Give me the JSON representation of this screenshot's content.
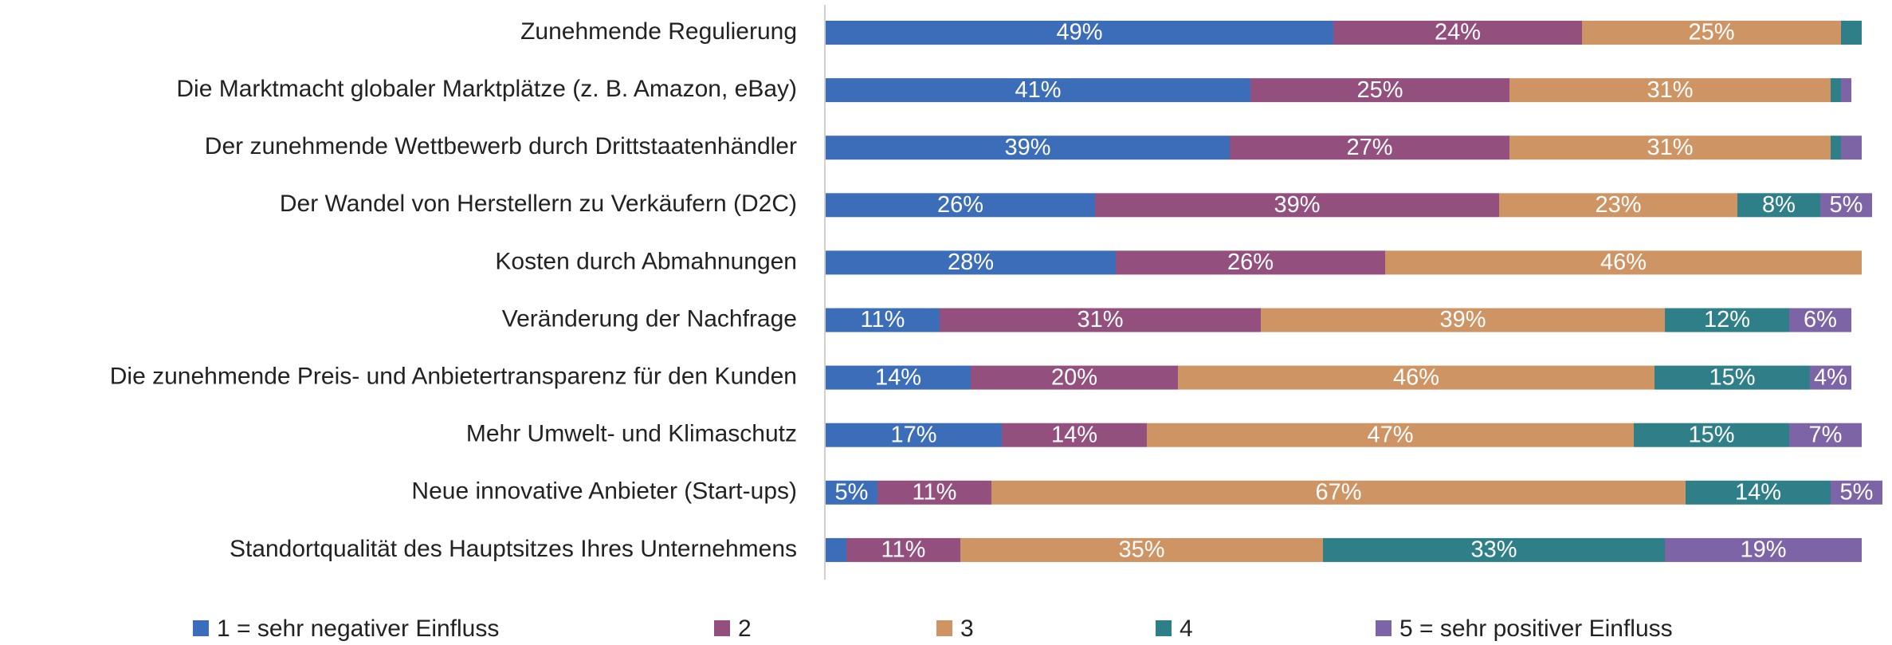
{
  "chart_data": {
    "type": "stacked-barh",
    "categories": [
      "Zunehmende Regulierung",
      "Die Marktmacht globaler Marktplätze (z. B. Amazon, eBay)",
      "Der zunehmende Wettbewerb durch Drittstaatenhändler",
      "Der Wandel von Herstellern zu Verkäufern (D2C)",
      "Kosten durch Abmahnungen",
      "Veränderung der Nachfrage",
      "Die zunehmende Preis- und Anbietertransparenz für den Kunden",
      "Mehr Umwelt- und Klimaschutz",
      "Neue innovative Anbieter (Start-ups)",
      "Standortqualität des Hauptsitzes Ihres Unternehmens"
    ],
    "series": [
      {
        "name": "1 = sehr negativer Einfluss",
        "color": "#3c6db8",
        "values": [
          49,
          41,
          39,
          26,
          28,
          11,
          14,
          17,
          5,
          2
        ],
        "value_labels": [
          "49%",
          "41%",
          "39%",
          "26%",
          "28%",
          "11%",
          "14%",
          "17%",
          "5%",
          null
        ]
      },
      {
        "name": "2",
        "color": "#93507f",
        "values": [
          24,
          25,
          27,
          39,
          26,
          31,
          20,
          14,
          11,
          11
        ],
        "value_labels": [
          "24%",
          "25%",
          "27%",
          "39%",
          "26%",
          "31%",
          "20%",
          "14%",
          "11%",
          "11%"
        ]
      },
      {
        "name": "3",
        "color": "#cf9464",
        "values": [
          25,
          31,
          31,
          23,
          46,
          39,
          46,
          47,
          67,
          35
        ],
        "value_labels": [
          "25%",
          "31%",
          "31%",
          "23%",
          "46%",
          "39%",
          "46%",
          "47%",
          "67%",
          "35%"
        ]
      },
      {
        "name": "4",
        "color": "#2e7f87",
        "values": [
          2,
          1,
          1,
          8,
          0,
          12,
          15,
          15,
          14,
          33
        ],
        "value_labels": [
          null,
          null,
          null,
          "8%",
          null,
          "12%",
          "15%",
          "15%",
          "14%",
          "33%"
        ]
      },
      {
        "name": "5 = sehr positiver Einfluss",
        "color": "#7c64a7",
        "values": [
          0,
          1,
          2,
          5,
          0,
          6,
          4,
          7,
          5,
          19
        ],
        "value_labels": [
          null,
          null,
          null,
          "5%",
          null,
          "6%",
          "4%",
          "7%",
          "5%",
          "19%"
        ]
      }
    ],
    "xlim": [
      0,
      100
    ]
  }
}
